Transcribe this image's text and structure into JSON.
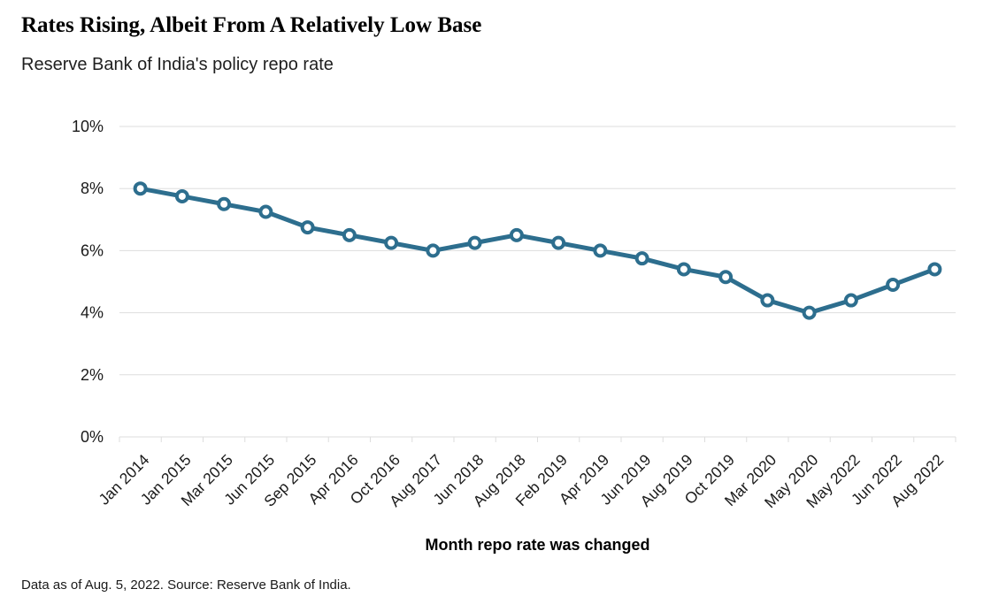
{
  "page": {
    "title": "Rates Rising, Albeit From A Relatively Low Base",
    "subtitle": "Reserve Bank of India's policy repo rate",
    "source_note": "Data as of Aug. 5, 2022. Source: Reserve Bank of India."
  },
  "chart_data": {
    "type": "line",
    "title": "Rates Rising, Albeit From A Relatively Low Base",
    "subtitle": "Reserve Bank of India's policy repo rate",
    "xlabel": "Month repo rate was changed",
    "ylabel": "",
    "categories": [
      "Jan 2014",
      "Jan 2015",
      "Mar 2015",
      "Jun 2015",
      "Sep 2015",
      "Apr 2016",
      "Oct 2016",
      "Aug 2017",
      "Jun 2018",
      "Aug 2018",
      "Feb 2019",
      "Apr 2019",
      "Jun 2019",
      "Aug 2019",
      "Oct 2019",
      "Mar 2020",
      "May 2020",
      "May 2022",
      "Jun 2022",
      "Aug 2022"
    ],
    "series": [
      {
        "name": "Policy repo rate",
        "values": [
          8.0,
          7.75,
          7.5,
          7.25,
          6.75,
          6.5,
          6.25,
          6.0,
          6.25,
          6.5,
          6.25,
          6.0,
          5.75,
          5.4,
          5.15,
          4.4,
          4.0,
          4.4,
          4.9,
          5.4
        ]
      }
    ],
    "ylim": [
      0,
      10
    ],
    "yticks": [
      0,
      2,
      4,
      6,
      8,
      10
    ],
    "ytick_suffix": "%",
    "grid": true,
    "legend": "none",
    "marker_style": "open-circle",
    "colors": {
      "line": "#2d6e8e",
      "marker_fill": "#ffffff",
      "grid": "#dddddd",
      "text": "#1a1a1a"
    },
    "source_note": "Data as of Aug. 5, 2022. Source: Reserve Bank of India."
  }
}
